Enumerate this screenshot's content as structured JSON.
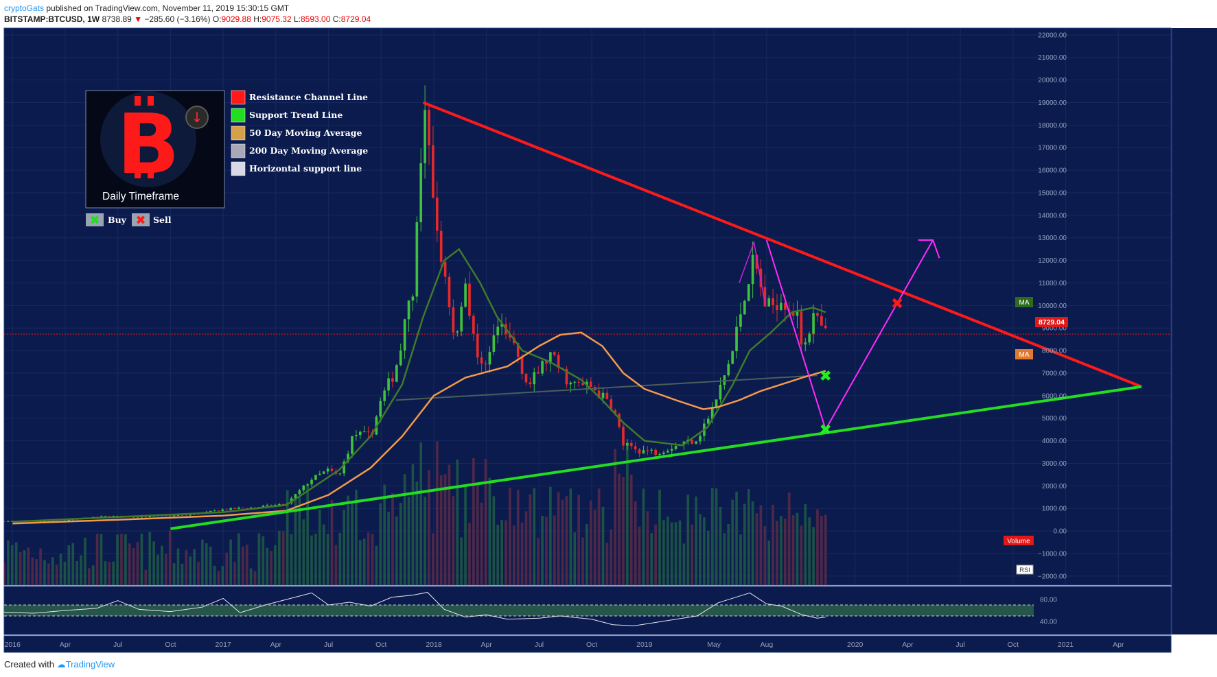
{
  "header": {
    "author": "cryptoGats",
    "published": "published on TradingView.com, November 11, 2019 15:30:15 GMT",
    "symbol": "BITSTAMP:BTCUSD, 1W",
    "price": "8738.89",
    "change": "−285.60 (−3.16%)",
    "o_label": "O:",
    "o_val": "9029.88",
    "h_label": "H:",
    "h_val": "9075.32",
    "l_label": "L:",
    "l_val": "8593.00",
    "c_label": "C:",
    "c_val": "8729.04"
  },
  "footer": {
    "created_with": "Created with",
    "brand": "TradingView"
  },
  "legend": {
    "timeframe": "Daily Timeframe",
    "items": [
      {
        "label": "Resistance Channel Line",
        "color": "#ff1a1a"
      },
      {
        "label": "Support Trend Line",
        "color": "#22dd22"
      },
      {
        "label": "50 Day Moving Average",
        "color": "#d4a04a"
      },
      {
        "label": "200 Day Moving Average",
        "color": "#a8a8b8"
      },
      {
        "label": "Horizontal support line",
        "color": "#d8d8e6"
      }
    ],
    "buy": "Buy",
    "sell": "Sell"
  },
  "badges": {
    "ma1": "MA",
    "ma2": "MA",
    "last_price": "8729.04",
    "volume": "Volume",
    "rsi": "RSI"
  },
  "chart_data": {
    "type": "candlestick",
    "symbol": "BITSTAMP:BTCUSD",
    "interval": "1W",
    "y_ticks": [
      -2000,
      -1000,
      0,
      1000,
      2000,
      3000,
      4000,
      5000,
      6000,
      7000,
      8000,
      9000,
      10000,
      11000,
      12000,
      13000,
      14000,
      15000,
      16000,
      17000,
      18000,
      19000,
      20000,
      21000,
      22000
    ],
    "y_tick_labels": [
      "−2000.00",
      "−1000.00",
      "0.00",
      "1000.00",
      "2000.00",
      "3000.00",
      "4000.00",
      "5000.00",
      "6000.00",
      "7000.00",
      "8000.00",
      "9000.00",
      "10000.00",
      "11000.00",
      "12000.00",
      "13000.00",
      "14000.00",
      "15000.00",
      "16000.00",
      "17000.00",
      "18000.00",
      "19000.00",
      "20000.00",
      "21000.00",
      "22000.00"
    ],
    "ylim": [
      -2400,
      22300
    ],
    "x_ticks": [
      {
        "label": "2016",
        "t": 2016.0
      },
      {
        "label": "Apr",
        "t": 2016.25
      },
      {
        "label": "Jul",
        "t": 2016.5
      },
      {
        "label": "Oct",
        "t": 2016.75
      },
      {
        "label": "2017",
        "t": 2017.0
      },
      {
        "label": "Apr",
        "t": 2017.25
      },
      {
        "label": "Jul",
        "t": 2017.5
      },
      {
        "label": "Oct",
        "t": 2017.75
      },
      {
        "label": "2018",
        "t": 2018.0
      },
      {
        "label": "Apr",
        "t": 2018.25
      },
      {
        "label": "Jul",
        "t": 2018.5
      },
      {
        "label": "Oct",
        "t": 2018.75
      },
      {
        "label": "2019",
        "t": 2019.0
      },
      {
        "label": "May",
        "t": 2019.33
      },
      {
        "label": "Aug",
        "t": 2019.58
      },
      {
        "label": "2020",
        "t": 2020.0
      },
      {
        "label": "Apr",
        "t": 2020.25
      },
      {
        "label": "Jul",
        "t": 2020.5
      },
      {
        "label": "Oct",
        "t": 2020.75
      },
      {
        "label": "2021",
        "t": 2021.0
      },
      {
        "label": "Apr",
        "t": 2021.25
      }
    ],
    "xlim": [
      2015.96,
      2021.5
    ],
    "price_path": [
      [
        2015.96,
        430
      ],
      [
        2016.2,
        420
      ],
      [
        2016.45,
        660
      ],
      [
        2016.6,
        620
      ],
      [
        2016.85,
        720
      ],
      [
        2017.0,
        950
      ],
      [
        2017.15,
        1050
      ],
      [
        2017.3,
        1200
      ],
      [
        2017.42,
        2300
      ],
      [
        2017.5,
        2700
      ],
      [
        2017.55,
        2400
      ],
      [
        2017.62,
        4300
      ],
      [
        2017.7,
        4200
      ],
      [
        2017.75,
        5800
      ],
      [
        2017.82,
        7200
      ],
      [
        2017.9,
        10800
      ],
      [
        2017.96,
        18500
      ],
      [
        2018.0,
        14000
      ],
      [
        2018.05,
        11500
      ],
      [
        2018.1,
        8500
      ],
      [
        2018.15,
        11000
      ],
      [
        2018.22,
        7000
      ],
      [
        2018.3,
        9000
      ],
      [
        2018.38,
        8300
      ],
      [
        2018.45,
        6400
      ],
      [
        2018.55,
        7800
      ],
      [
        2018.65,
        6500
      ],
      [
        2018.75,
        6400
      ],
      [
        2018.85,
        5500
      ],
      [
        2018.9,
        3800
      ],
      [
        2018.97,
        3600
      ],
      [
        2019.05,
        3500
      ],
      [
        2019.15,
        3800
      ],
      [
        2019.25,
        4100
      ],
      [
        2019.33,
        5500
      ],
      [
        2019.42,
        8000
      ],
      [
        2019.48,
        10800
      ],
      [
        2019.52,
        12000
      ],
      [
        2019.58,
        9800
      ],
      [
        2019.65,
        10400
      ],
      [
        2019.72,
        9600
      ],
      [
        2019.75,
        8200
      ],
      [
        2019.8,
        9500
      ],
      [
        2019.86,
        8729
      ]
    ],
    "ma_short": [
      [
        2016.0,
        410
      ],
      [
        2016.5,
        620
      ],
      [
        2017.0,
        830
      ],
      [
        2017.3,
        1150
      ],
      [
        2017.55,
        2700
      ],
      [
        2017.7,
        4200
      ],
      [
        2017.85,
        6500
      ],
      [
        2017.95,
        9500
      ],
      [
        2018.05,
        12000
      ],
      [
        2018.12,
        12500
      ],
      [
        2018.22,
        11000
      ],
      [
        2018.3,
        9500
      ],
      [
        2018.42,
        8000
      ],
      [
        2018.55,
        7500
      ],
      [
        2018.7,
        6700
      ],
      [
        2018.8,
        5800
      ],
      [
        2018.9,
        4800
      ],
      [
        2019.0,
        4000
      ],
      [
        2019.18,
        3800
      ],
      [
        2019.3,
        4600
      ],
      [
        2019.42,
        6500
      ],
      [
        2019.5,
        8000
      ],
      [
        2019.6,
        8800
      ],
      [
        2019.7,
        9700
      ],
      [
        2019.8,
        9900
      ],
      [
        2019.86,
        9700
      ]
    ],
    "ma_long": [
      [
        2016.0,
        330
      ],
      [
        2016.5,
        500
      ],
      [
        2017.0,
        680
      ],
      [
        2017.3,
        900
      ],
      [
        2017.5,
        1600
      ],
      [
        2017.7,
        2800
      ],
      [
        2017.85,
        4200
      ],
      [
        2018.0,
        6000
      ],
      [
        2018.15,
        6800
      ],
      [
        2018.35,
        7300
      ],
      [
        2018.5,
        8200
      ],
      [
        2018.6,
        8700
      ],
      [
        2018.7,
        8800
      ],
      [
        2018.8,
        8200
      ],
      [
        2018.9,
        7000
      ],
      [
        2019.0,
        6300
      ],
      [
        2019.15,
        5800
      ],
      [
        2019.28,
        5400
      ],
      [
        2019.35,
        5500
      ],
      [
        2019.45,
        5800
      ],
      [
        2019.55,
        6200
      ],
      [
        2019.65,
        6500
      ],
      [
        2019.75,
        6800
      ],
      [
        2019.86,
        7100
      ]
    ],
    "horizontal_support": [
      [
        2017.82,
        5800
      ],
      [
        2019.82,
        6900
      ]
    ],
    "resistance_line": [
      [
        2017.95,
        19000
      ],
      [
        2021.36,
        6400
      ]
    ],
    "support_line": [
      [
        2016.75,
        100
      ],
      [
        2021.36,
        6400
      ]
    ],
    "projection_path": [
      [
        2019.58,
        12900
      ],
      [
        2019.86,
        4500
      ],
      [
        2020.2,
        10100
      ],
      [
        2020.37,
        12900
      ]
    ],
    "projection_arrow_head": [
      [
        2020.3,
        12900
      ],
      [
        2020.37,
        12900
      ],
      [
        2020.4,
        12100
      ]
    ],
    "spike_path": [
      [
        2019.45,
        11000
      ],
      [
        2019.52,
        12800
      ],
      [
        2019.57,
        10200
      ]
    ],
    "signals": [
      {
        "type": "buy",
        "t": 2019.86,
        "value": 4500
      },
      {
        "type": "buy",
        "t": 2019.86,
        "value": 6900
      },
      {
        "type": "sell",
        "t": 2020.2,
        "value": 10100
      }
    ],
    "last_price": 8729.04,
    "volume_ylim": [
      0,
      10000
    ],
    "rsi_ticks": [
      80,
      40
    ],
    "rsi_tick_labels": [
      "80.00",
      "40.00"
    ],
    "rsi_band": [
      70,
      50
    ],
    "rsi_ylim": [
      20,
      100
    ],
    "rsi_path": [
      [
        2015.96,
        57
      ],
      [
        2016.1,
        55
      ],
      [
        2016.25,
        60
      ],
      [
        2016.4,
        64
      ],
      [
        2016.5,
        78
      ],
      [
        2016.6,
        62
      ],
      [
        2016.75,
        58
      ],
      [
        2016.9,
        66
      ],
      [
        2017.0,
        82
      ],
      [
        2017.08,
        56
      ],
      [
        2017.2,
        70
      ],
      [
        2017.3,
        80
      ],
      [
        2017.42,
        92
      ],
      [
        2017.5,
        70
      ],
      [
        2017.6,
        75
      ],
      [
        2017.7,
        68
      ],
      [
        2017.8,
        84
      ],
      [
        2017.9,
        88
      ],
      [
        2017.97,
        93
      ],
      [
        2018.05,
        62
      ],
      [
        2018.15,
        48
      ],
      [
        2018.25,
        52
      ],
      [
        2018.35,
        44
      ],
      [
        2018.5,
        46
      ],
      [
        2018.6,
        50
      ],
      [
        2018.75,
        44
      ],
      [
        2018.85,
        34
      ],
      [
        2018.95,
        32
      ],
      [
        2019.05,
        38
      ],
      [
        2019.15,
        44
      ],
      [
        2019.25,
        50
      ],
      [
        2019.35,
        74
      ],
      [
        2019.45,
        86
      ],
      [
        2019.5,
        92
      ],
      [
        2019.58,
        72
      ],
      [
        2019.65,
        68
      ],
      [
        2019.75,
        52
      ],
      [
        2019.82,
        46
      ],
      [
        2019.86,
        48
      ]
    ]
  }
}
